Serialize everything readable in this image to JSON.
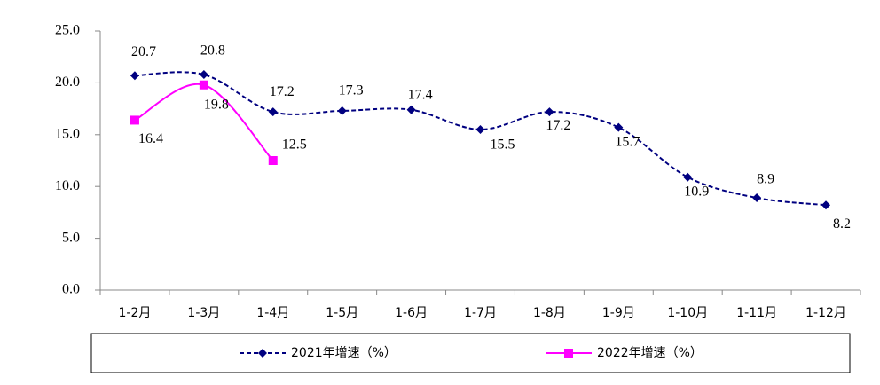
{
  "chart_data": {
    "type": "line",
    "categories": [
      "1-2月",
      "1-3月",
      "1-4月",
      "1-5月",
      "1-6月",
      "1-7月",
      "1-8月",
      "1-9月",
      "1-10月",
      "1-11月",
      "1-12月"
    ],
    "series": [
      {
        "name": "2021年增速（%）",
        "color": "#000080",
        "marker": "diamond",
        "dashed": true,
        "values": [
          20.7,
          20.8,
          17.2,
          17.3,
          17.4,
          15.5,
          17.2,
          15.7,
          10.9,
          8.9,
          8.2
        ]
      },
      {
        "name": "2022年增速（%）",
        "color": "#ff00ff",
        "marker": "square",
        "dashed": false,
        "values": [
          16.4,
          19.8,
          12.5,
          null,
          null,
          null,
          null,
          null,
          null,
          null,
          null
        ]
      }
    ],
    "ylim": [
      0,
      25
    ],
    "yticks": [
      {
        "value": 0,
        "label": "0.0"
      },
      {
        "value": 5,
        "label": "5.0"
      },
      {
        "value": 10,
        "label": "10.0"
      },
      {
        "value": 15,
        "label": "15.0"
      },
      {
        "value": 20,
        "label": "20.0"
      },
      {
        "value": 25,
        "label": "25.0"
      }
    ],
    "grid": false,
    "legend": "bottom"
  }
}
